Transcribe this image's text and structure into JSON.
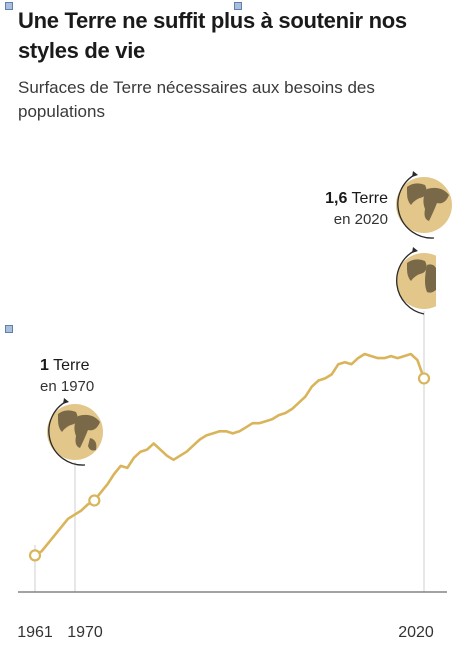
{
  "title": "Une Terre ne suffit plus à soutenir nos styles de vie",
  "subtitle": "Surfaces de Terre nécessaires aux besoins des populations",
  "colors": {
    "line": "#d9b45a",
    "axis": "#6b6b6b",
    "guide": "#c8c8c8",
    "text": "#1a1a1a"
  },
  "chart_data": {
    "type": "line",
    "title": "Une Terre ne suffit plus à soutenir nos styles de vie",
    "subtitle": "Surfaces de Terre nécessaires aux besoins des populations",
    "xlabel": "",
    "ylabel": "",
    "xlim": [
      1961,
      2020
    ],
    "ylim": [
      0.55,
      1.73
    ],
    "grid": false,
    "legend": "none",
    "x_ticks": [
      "1961",
      "1970",
      "2020"
    ],
    "series": [
      {
        "x": [
          1961,
          1962,
          1963,
          1964,
          1965,
          1966,
          1967,
          1968,
          1969,
          1970,
          1971,
          1972,
          1973,
          1974,
          1975,
          1976,
          1977,
          1978,
          1979,
          1980,
          1981,
          1982,
          1983,
          1984,
          1985,
          1986,
          1987,
          1988,
          1989,
          1990,
          1991,
          1992,
          1993,
          1994,
          1995,
          1996,
          1997,
          1998,
          1999,
          2000,
          2001,
          2002,
          2003,
          2004,
          2005,
          2006,
          2007,
          2008,
          2009,
          2010,
          2011,
          2012,
          2013,
          2014,
          2015,
          2016,
          2017,
          2018,
          2019,
          2020
        ],
        "values": [
          0.73,
          0.75,
          0.79,
          0.83,
          0.87,
          0.91,
          0.93,
          0.95,
          0.98,
          1.0,
          1.04,
          1.08,
          1.13,
          1.17,
          1.16,
          1.21,
          1.24,
          1.25,
          1.28,
          1.25,
          1.22,
          1.2,
          1.22,
          1.24,
          1.27,
          1.3,
          1.32,
          1.33,
          1.34,
          1.34,
          1.33,
          1.34,
          1.36,
          1.38,
          1.38,
          1.39,
          1.4,
          1.42,
          1.43,
          1.45,
          1.48,
          1.51,
          1.56,
          1.59,
          1.6,
          1.62,
          1.67,
          1.68,
          1.67,
          1.7,
          1.72,
          1.71,
          1.7,
          1.7,
          1.71,
          1.7,
          1.71,
          1.72,
          1.69,
          1.6
        ]
      }
    ],
    "annotations": [
      {
        "year": 1970,
        "value_bold": "1",
        "value_text": " Terre",
        "caption": "en 1970",
        "icon": "earth-globe-full"
      },
      {
        "year": 2020,
        "value_bold": "1,6",
        "value_text": " Terre",
        "caption": "en 2020",
        "icon": "earth-globe-full-plus-partial"
      }
    ]
  }
}
